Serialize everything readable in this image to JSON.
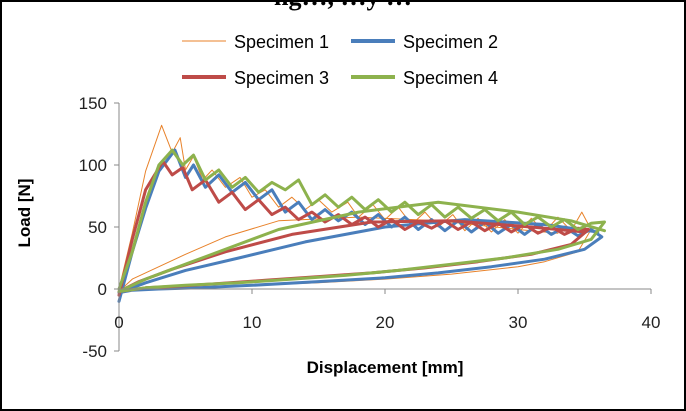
{
  "figure": {
    "cut_title": "ng…, …y …"
  },
  "chart_data": {
    "type": "line",
    "title": "",
    "xlabel": "Displacement [mm]",
    "ylabel": "Load [N]",
    "xlim": [
      0,
      40
    ],
    "ylim": [
      -50,
      150
    ],
    "xticks": [
      0,
      10,
      20,
      30,
      40
    ],
    "yticks": [
      -50,
      0,
      50,
      100,
      150
    ],
    "grid": false,
    "legend_position": "top-center",
    "series": [
      {
        "name": "Specimen 1",
        "color": "#E8822A",
        "width": 1,
        "x": [
          0,
          1,
          2,
          3.2,
          4,
          4.6,
          5,
          5.6,
          6.3,
          7,
          8,
          9.1,
          10,
          11,
          12,
          13,
          14,
          15,
          16,
          17.2,
          18,
          19.1,
          20,
          21,
          22,
          23,
          24,
          25.1,
          26,
          27,
          28,
          29,
          30,
          31,
          32,
          33,
          34,
          34.8,
          35.5,
          34.5,
          32,
          30,
          25,
          20,
          15,
          10,
          5,
          2,
          0,
          1,
          3,
          5,
          8,
          12,
          18,
          24,
          30,
          33
        ],
        "y": [
          0,
          45,
          95,
          132,
          110,
          122,
          96,
          107,
          88,
          96,
          82,
          90,
          74,
          80,
          66,
          74,
          64,
          72,
          62,
          70,
          58,
          68,
          56,
          66,
          52,
          62,
          50,
          60,
          47,
          57,
          46,
          56,
          45,
          57,
          46,
          58,
          47,
          62,
          48,
          30,
          22,
          18,
          12,
          8,
          5,
          3,
          1,
          0,
          -2,
          8,
          18,
          28,
          42,
          55,
          58,
          55,
          48,
          45
        ]
      },
      {
        "name": "Specimen 2",
        "color": "#4A7EBB",
        "width": 3,
        "x": [
          0,
          1,
          2,
          3,
          4.2,
          5,
          5.6,
          6.5,
          7.5,
          8.5,
          9.5,
          10.5,
          11.5,
          12.5,
          13.5,
          14.5,
          15.5,
          16.5,
          17.5,
          18.5,
          19.5,
          20.5,
          21.5,
          22.5,
          23.5,
          24.5,
          25.5,
          26.5,
          27.5,
          28.5,
          29.5,
          30.5,
          31.5,
          32.5,
          33.5,
          34.5,
          35.5,
          36.3,
          35,
          32,
          28,
          24,
          20,
          15,
          10,
          6,
          3,
          1,
          0,
          2,
          5,
          9,
          14,
          20,
          26,
          32,
          36
        ],
        "y": [
          -10,
          30,
          65,
          95,
          112,
          90,
          100,
          82,
          92,
          78,
          86,
          72,
          80,
          62,
          70,
          56,
          64,
          55,
          62,
          52,
          60,
          50,
          58,
          48,
          56,
          47,
          55,
          46,
          54,
          45,
          52,
          44,
          52,
          44,
          50,
          43,
          48,
          42,
          32,
          24,
          18,
          13,
          9,
          6,
          3,
          1,
          0,
          -1,
          -3,
          5,
          15,
          25,
          38,
          50,
          56,
          52,
          46
        ]
      },
      {
        "name": "Specimen 3",
        "color": "#BE4B48",
        "width": 3,
        "x": [
          0,
          1,
          2,
          3.3,
          4,
          4.8,
          5.5,
          6.5,
          7.5,
          8.5,
          9.5,
          10.5,
          11.5,
          12.5,
          13.5,
          14.5,
          15.5,
          16.5,
          17.5,
          18.5,
          19.5,
          20.5,
          21.5,
          22.5,
          23.5,
          24.5,
          25.5,
          26.5,
          27.5,
          28.5,
          29.5,
          30.5,
          31.5,
          32.5,
          33.5,
          34.5,
          35.3,
          34,
          31,
          27,
          23,
          19,
          15,
          11,
          7,
          4,
          2,
          0,
          1.5,
          4,
          8,
          13,
          19,
          25,
          31,
          35
        ],
        "y": [
          -5,
          40,
          80,
          103,
          92,
          98,
          80,
          88,
          70,
          78,
          64,
          72,
          60,
          66,
          56,
          62,
          54,
          60,
          52,
          58,
          50,
          56,
          48,
          54,
          49,
          55,
          48,
          54,
          47,
          53,
          46,
          52,
          45,
          50,
          44,
          49,
          48,
          36,
          28,
          22,
          17,
          13,
          10,
          7,
          4,
          2,
          1,
          -2,
          6,
          16,
          30,
          44,
          54,
          55,
          50,
          46
        ]
      },
      {
        "name": "Specimen 4",
        "color": "#8DB24D",
        "width": 3,
        "x": [
          0,
          1,
          2,
          3,
          4,
          4.8,
          5.6,
          6.5,
          7.5,
          8.5,
          9.5,
          10.5,
          11.5,
          12.5,
          13.5,
          14.5,
          15.5,
          16.5,
          17.5,
          18.5,
          19.5,
          20.5,
          21.5,
          22.5,
          23.5,
          24.5,
          25.5,
          26.5,
          27.5,
          28.5,
          29.5,
          30.5,
          31.5,
          32.5,
          33.5,
          34.5,
          35.5,
          36.5,
          35.5,
          33,
          29,
          25,
          21,
          17,
          13,
          9,
          5,
          2,
          0,
          2,
          5,
          8,
          12,
          18,
          24,
          30,
          34,
          36.5
        ],
        "y": [
          0,
          30,
          70,
          100,
          112,
          100,
          108,
          88,
          96,
          82,
          90,
          78,
          86,
          80,
          88,
          68,
          76,
          66,
          74,
          64,
          72,
          62,
          70,
          60,
          68,
          58,
          66,
          57,
          64,
          55,
          62,
          52,
          58,
          50,
          56,
          48,
          53,
          54,
          40,
          32,
          25,
          20,
          15,
          11,
          8,
          5,
          3,
          1,
          -2,
          8,
          20,
          32,
          48,
          62,
          70,
          62,
          55,
          47
        ]
      }
    ]
  },
  "legend": {
    "items": [
      "Specimen 1",
      "Specimen 2",
      "Specimen 3",
      "Specimen 4"
    ]
  }
}
